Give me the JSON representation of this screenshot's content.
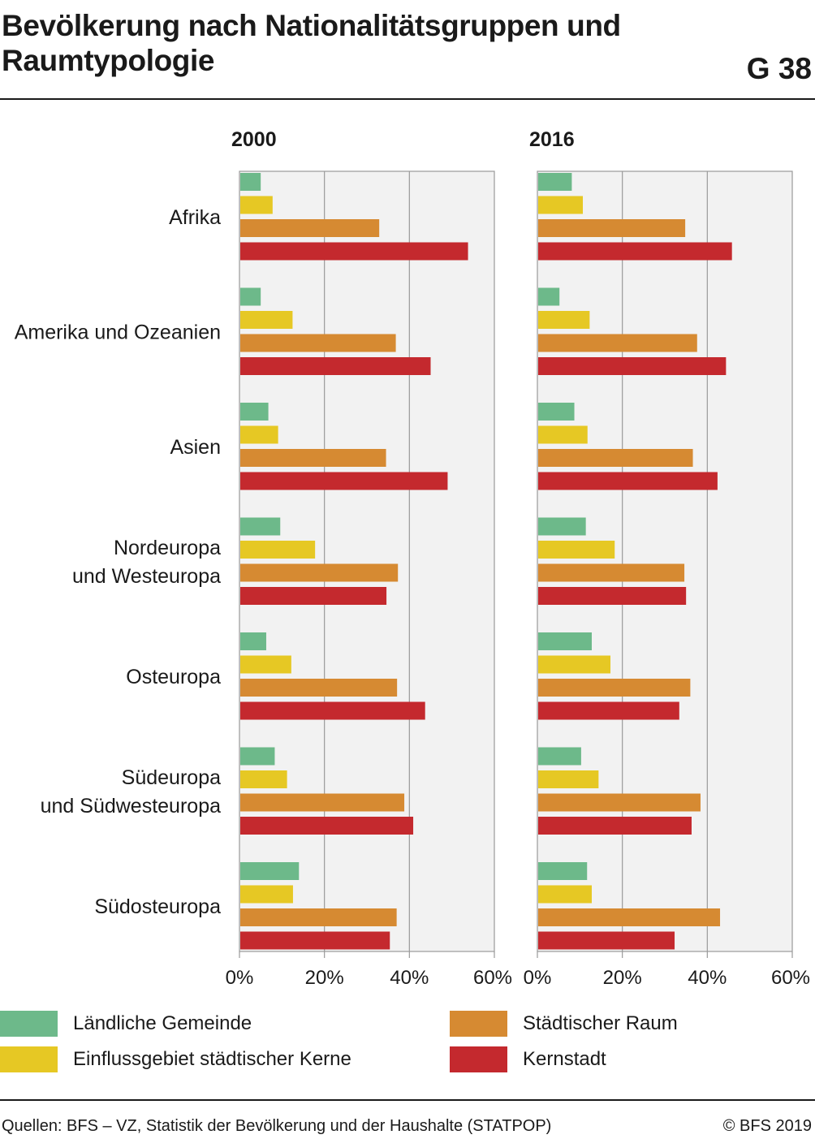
{
  "header": {
    "title": "Bevölkerung nach Nationalitätsgruppen und Raumtypologie",
    "graphic_number": "G 38"
  },
  "footer": {
    "source": "Quellen: BFS – VZ, Statistik der Bevölkerung und der Haushalte (STATPOP)",
    "copyright": "© BFS 2019"
  },
  "colors": {
    "Ländliche Gemeinde": "#6db98a",
    "Einflussgebiet städtischer Kerne": "#e6c824",
    "Städtischer Raum": "#d68a32",
    "Kernstadt": "#c4292e",
    "panel_bg": "#f2f2f2",
    "grid": "#9a9a9a"
  },
  "chart_data": {
    "type": "bar",
    "orientation": "horizontal",
    "categories": [
      "Afrika",
      "Amerika und Ozeanien",
      "Asien",
      "Nordeuropa und Westeuropa",
      "Osteuropa",
      "Südeuropa und Südwesteuropa",
      "Südosteuropa"
    ],
    "category_lines": [
      [
        "Afrika"
      ],
      [
        "Amerika und Ozeanien"
      ],
      [
        "Asien"
      ],
      [
        "Nordeuropa",
        "und Westeuropa"
      ],
      [
        "Osteuropa"
      ],
      [
        "Südeuropa",
        "und Südwesteuropa"
      ],
      [
        "Südosteuropa"
      ]
    ],
    "xlim": [
      0,
      60
    ],
    "xticks": [
      0,
      20,
      40,
      60
    ],
    "tick_labels": [
      "0%",
      "20%",
      "40%",
      "60%"
    ],
    "grid": true,
    "legend_position": "bottom",
    "panels": [
      {
        "title": "2000",
        "series": [
          {
            "name": "Ländliche Gemeinde",
            "values": [
              5.0,
              5.0,
              6.8,
              9.6,
              6.3,
              8.3,
              14.0
            ]
          },
          {
            "name": "Einflussgebiet städtischer Kerne",
            "values": [
              7.8,
              12.5,
              9.1,
              17.8,
              12.2,
              11.2,
              12.6
            ]
          },
          {
            "name": "Städtischer Raum",
            "values": [
              32.9,
              36.8,
              34.5,
              37.3,
              37.1,
              38.8,
              37.0
            ]
          },
          {
            "name": "Kernstadt",
            "values": [
              53.8,
              45.0,
              49.0,
              34.6,
              43.7,
              40.9,
              35.4
            ]
          }
        ]
      },
      {
        "title": "2016",
        "series": [
          {
            "name": "Ländliche Gemeinde",
            "values": [
              8.1,
              5.2,
              8.7,
              11.4,
              12.8,
              10.3,
              11.7
            ]
          },
          {
            "name": "Einflussgebiet städtischer Kerne",
            "values": [
              10.7,
              12.3,
              11.8,
              18.2,
              17.2,
              14.4,
              12.8
            ]
          },
          {
            "name": "Städtischer Raum",
            "values": [
              34.8,
              37.6,
              36.6,
              34.6,
              36.0,
              38.4,
              43.0
            ]
          },
          {
            "name": "Kernstadt",
            "values": [
              45.8,
              44.4,
              42.4,
              35.0,
              33.4,
              36.3,
              32.3
            ]
          }
        ]
      }
    ]
  }
}
